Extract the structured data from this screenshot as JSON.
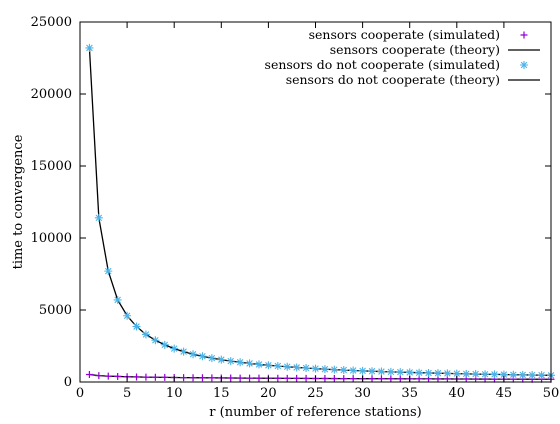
{
  "chart_data": {
    "type": "line",
    "title": "",
    "xlabel": "r (number of reference stations)",
    "ylabel": "time to convergence",
    "xlim": [
      0,
      50
    ],
    "ylim": [
      0,
      25000
    ],
    "x_ticks": [
      0,
      5,
      10,
      15,
      20,
      25,
      30,
      35,
      40,
      45,
      50
    ],
    "y_ticks": [
      0,
      5000,
      10000,
      15000,
      20000,
      25000
    ],
    "grid": false,
    "legend_position": "top-right",
    "x": [
      1,
      2,
      3,
      4,
      5,
      6,
      7,
      8,
      9,
      10,
      11,
      12,
      13,
      14,
      15,
      16,
      17,
      18,
      19,
      20,
      21,
      22,
      23,
      24,
      25,
      26,
      27,
      28,
      29,
      30,
      31,
      32,
      33,
      34,
      35,
      36,
      37,
      38,
      39,
      40,
      41,
      42,
      43,
      44,
      45,
      46,
      47,
      48,
      49,
      50
    ],
    "series": [
      {
        "name": "sensors cooperate (simulated)",
        "kind": "scatter",
        "marker": "plus",
        "color": "#9400d3",
        "values": [
          520,
          440,
          410,
          385,
          365,
          350,
          338,
          328,
          319,
          311,
          304,
          298,
          292,
          287,
          282,
          277,
          273,
          269,
          265,
          261,
          258,
          254,
          251,
          248,
          245,
          242,
          239,
          236,
          234,
          231,
          229,
          226,
          224,
          222,
          219,
          217,
          215,
          213,
          211,
          209,
          207,
          205,
          203,
          201,
          199,
          198,
          196,
          194,
          192,
          191
        ]
      },
      {
        "name": "sensors cooperate (theory)",
        "kind": "line",
        "color": "#000000",
        "values": [
          520,
          440,
          410,
          385,
          365,
          350,
          338,
          328,
          319,
          311,
          304,
          298,
          292,
          287,
          282,
          277,
          273,
          269,
          265,
          261,
          258,
          254,
          251,
          248,
          245,
          242,
          239,
          236,
          234,
          231,
          229,
          226,
          224,
          222,
          219,
          217,
          215,
          213,
          211,
          209,
          207,
          205,
          203,
          201,
          199,
          198,
          196,
          194,
          192,
          191
        ]
      },
      {
        "name": "sensors do not cooperate (simulated)",
        "kind": "scatter",
        "marker": "star",
        "color": "#4db3e6",
        "values": [
          23200,
          11400,
          7700,
          5700,
          4600,
          3850,
          3300,
          2900,
          2580,
          2320,
          2110,
          1930,
          1790,
          1660,
          1550,
          1450,
          1370,
          1290,
          1220,
          1160,
          1110,
          1060,
          1010,
          970,
          930,
          890,
          860,
          830,
          800,
          775,
          750,
          725,
          705,
          685,
          665,
          645,
          628,
          612,
          596,
          580,
          566,
          553,
          540,
          527,
          516,
          505,
          494,
          484,
          474,
          465
        ]
      },
      {
        "name": "sensors do not cooperate (theory)",
        "kind": "line",
        "color": "#000000",
        "values": [
          23200,
          11400,
          7700,
          5700,
          4600,
          3850,
          3300,
          2900,
          2580,
          2320,
          2110,
          1930,
          1790,
          1660,
          1550,
          1450,
          1370,
          1290,
          1220,
          1160,
          1110,
          1060,
          1010,
          970,
          930,
          890,
          860,
          830,
          800,
          775,
          750,
          725,
          705,
          685,
          665,
          645,
          628,
          612,
          596,
          580,
          566,
          553,
          540,
          527,
          516,
          505,
          494,
          484,
          474,
          465
        ]
      }
    ]
  }
}
